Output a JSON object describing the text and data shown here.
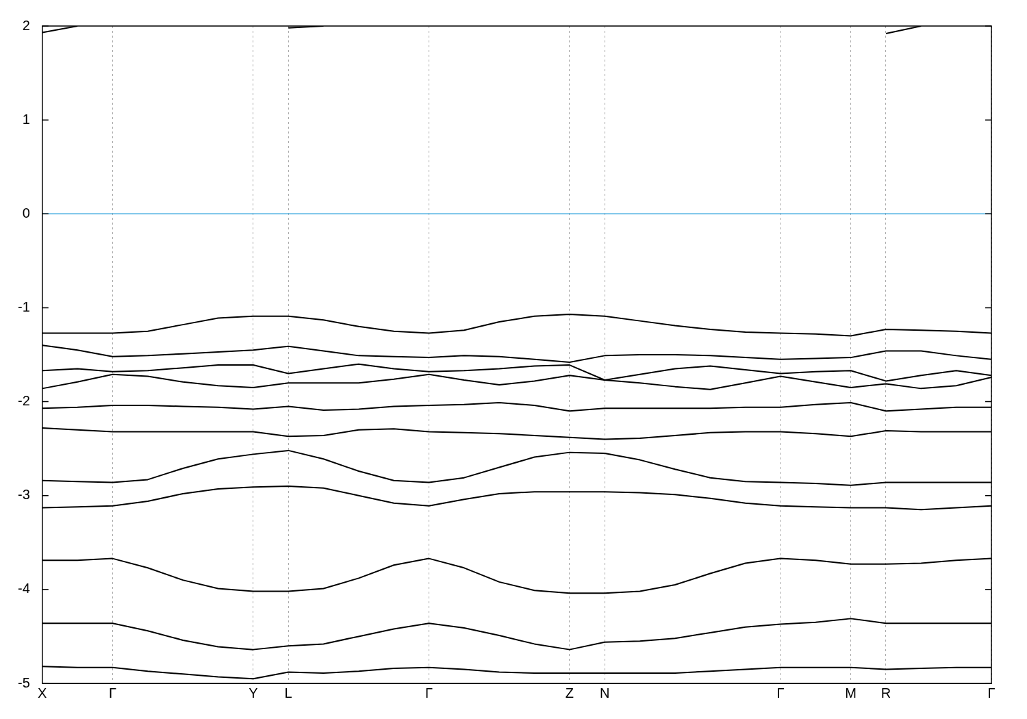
{
  "chart_data": {
    "type": "line",
    "categories": [
      "X",
      null,
      "Γ",
      null,
      null,
      null,
      "Y",
      "L",
      null,
      null,
      null,
      "Γ",
      null,
      null,
      null,
      "Z",
      "N",
      null,
      null,
      null,
      null,
      "Γ",
      null,
      "M",
      "R",
      null,
      null,
      "Γ"
    ],
    "ylim": [
      -5,
      2
    ],
    "yticks": [
      -5,
      -4,
      -3,
      -2,
      -1,
      0,
      1,
      2
    ],
    "grid": "x",
    "legend": false,
    "marker": "none",
    "line_style": "solid",
    "ref_lines": [
      {
        "axis": "y",
        "value": 0,
        "color": "#3fa9e0"
      }
    ],
    "series": [
      {
        "color": "#000000",
        "values": [
          1.93,
          2.0,
          null,
          null,
          null,
          null,
          null,
          1.98,
          2.0,
          null,
          null,
          null,
          null,
          null,
          null,
          null,
          null,
          null,
          null,
          null,
          null,
          null,
          null,
          null,
          1.92,
          2.0,
          null,
          null
        ]
      },
      {
        "color": "#000000",
        "values": [
          -1.27,
          -1.27,
          -1.27,
          -1.25,
          -1.18,
          -1.11,
          -1.09,
          -1.09,
          -1.13,
          -1.2,
          -1.25,
          -1.27,
          -1.24,
          -1.15,
          -1.09,
          -1.07,
          -1.09,
          -1.14,
          -1.19,
          -1.23,
          -1.26,
          -1.27,
          -1.28,
          -1.3,
          -1.23,
          -1.24,
          -1.25,
          -1.27
        ]
      },
      {
        "color": "#000000",
        "values": [
          -1.4,
          -1.45,
          -1.52,
          -1.51,
          -1.49,
          -1.47,
          -1.45,
          -1.41,
          -1.46,
          -1.51,
          -1.52,
          -1.53,
          -1.51,
          -1.52,
          -1.55,
          -1.58,
          -1.51,
          -1.5,
          -1.5,
          -1.51,
          -1.53,
          -1.55,
          -1.54,
          -1.53,
          -1.46,
          -1.46,
          -1.51,
          -1.55
        ]
      },
      {
        "color": "#000000",
        "values": [
          -1.67,
          -1.65,
          -1.68,
          -1.67,
          -1.64,
          -1.61,
          -1.61,
          -1.7,
          -1.65,
          -1.6,
          -1.65,
          -1.68,
          -1.67,
          -1.65,
          -1.62,
          -1.61,
          -1.77,
          -1.71,
          -1.65,
          -1.62,
          -1.66,
          -1.7,
          -1.68,
          -1.67,
          -1.78,
          -1.72,
          -1.67,
          -1.72
        ]
      },
      {
        "color": "#000000",
        "values": [
          -1.86,
          -1.79,
          -1.71,
          -1.73,
          -1.79,
          -1.83,
          -1.85,
          -1.8,
          -1.8,
          -1.8,
          -1.76,
          -1.71,
          -1.77,
          -1.82,
          -1.78,
          -1.72,
          -1.77,
          -1.8,
          -1.84,
          -1.87,
          -1.8,
          -1.73,
          -1.79,
          -1.85,
          -1.81,
          -1.86,
          -1.83,
          -1.74
        ]
      },
      {
        "color": "#000000",
        "values": [
          -2.07,
          -2.06,
          -2.04,
          -2.04,
          -2.05,
          -2.06,
          -2.08,
          -2.05,
          -2.09,
          -2.08,
          -2.05,
          -2.04,
          -2.03,
          -2.01,
          -2.04,
          -2.1,
          -2.07,
          -2.07,
          -2.07,
          -2.07,
          -2.06,
          -2.06,
          -2.03,
          -2.01,
          -2.1,
          -2.08,
          -2.06,
          -2.06
        ]
      },
      {
        "color": "#000000",
        "values": [
          -2.28,
          -2.3,
          -2.32,
          -2.32,
          -2.32,
          -2.32,
          -2.32,
          -2.37,
          -2.36,
          -2.3,
          -2.29,
          -2.32,
          -2.33,
          -2.34,
          -2.36,
          -2.38,
          -2.4,
          -2.39,
          -2.36,
          -2.33,
          -2.32,
          -2.32,
          -2.34,
          -2.37,
          -2.31,
          -2.32,
          -2.32,
          -2.32
        ]
      },
      {
        "color": "#000000",
        "values": [
          -2.84,
          -2.85,
          -2.86,
          -2.83,
          -2.71,
          -2.61,
          -2.56,
          -2.52,
          -2.61,
          -2.74,
          -2.84,
          -2.86,
          -2.81,
          -2.7,
          -2.59,
          -2.54,
          -2.55,
          -2.62,
          -2.72,
          -2.81,
          -2.85,
          -2.86,
          -2.87,
          -2.89,
          -2.86,
          -2.86,
          -2.86,
          -2.86
        ]
      },
      {
        "color": "#000000",
        "values": [
          -3.13,
          -3.12,
          -3.11,
          -3.06,
          -2.98,
          -2.93,
          -2.91,
          -2.9,
          -2.92,
          -3.0,
          -3.08,
          -3.11,
          -3.04,
          -2.98,
          -2.96,
          -2.96,
          -2.96,
          -2.97,
          -2.99,
          -3.03,
          -3.08,
          -3.11,
          -3.12,
          -3.13,
          -3.13,
          -3.15,
          -3.13,
          -3.11
        ]
      },
      {
        "color": "#000000",
        "values": [
          -3.69,
          -3.69,
          -3.67,
          -3.77,
          -3.9,
          -3.99,
          -4.02,
          -4.02,
          -3.99,
          -3.88,
          -3.74,
          -3.67,
          -3.77,
          -3.92,
          -4.01,
          -4.04,
          -4.04,
          -4.02,
          -3.95,
          -3.83,
          -3.72,
          -3.67,
          -3.69,
          -3.73,
          -3.73,
          -3.72,
          -3.69,
          -3.67
        ]
      },
      {
        "color": "#000000",
        "values": [
          -4.36,
          -4.36,
          -4.36,
          -4.44,
          -4.54,
          -4.61,
          -4.64,
          -4.6,
          -4.58,
          -4.5,
          -4.42,
          -4.36,
          -4.41,
          -4.49,
          -4.58,
          -4.64,
          -4.56,
          -4.55,
          -4.52,
          -4.46,
          -4.4,
          -4.37,
          -4.35,
          -4.31,
          -4.36,
          -4.36,
          -4.36,
          -4.36
        ]
      },
      {
        "color": "#000000",
        "values": [
          -4.82,
          -4.83,
          -4.83,
          -4.87,
          -4.9,
          -4.93,
          -4.95,
          -4.88,
          -4.89,
          -4.87,
          -4.84,
          -4.83,
          -4.85,
          -4.88,
          -4.89,
          -4.89,
          -4.89,
          -4.89,
          -4.89,
          -4.87,
          -4.85,
          -4.83,
          -4.83,
          -4.83,
          -4.85,
          -4.84,
          -4.83,
          -4.83
        ]
      }
    ]
  }
}
